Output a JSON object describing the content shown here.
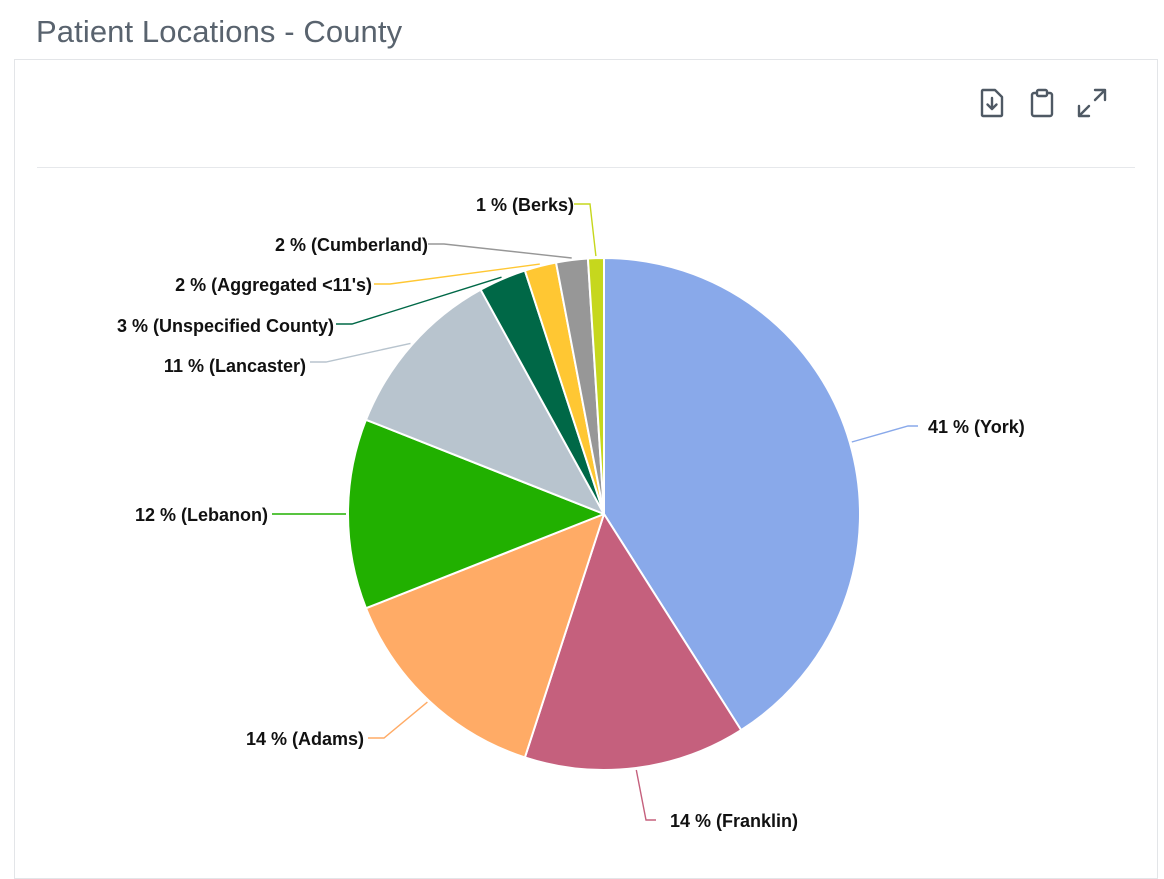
{
  "page": {
    "title": "Patient Locations - County"
  },
  "toolbar": {
    "icons": [
      "download-icon",
      "clipboard-icon",
      "expand-icon"
    ]
  },
  "chart_data": {
    "type": "pie",
    "title": "Patient Locations - County",
    "slices": [
      {
        "name": "York",
        "value": 41,
        "label": "41 % (York)",
        "color": "#89a9ea"
      },
      {
        "name": "Franklin",
        "value": 14,
        "label": "14 % (Franklin)",
        "color": "#c5607d"
      },
      {
        "name": "Adams",
        "value": 14,
        "label": "14 % (Adams)",
        "color": "#ffab66"
      },
      {
        "name": "Lebanon",
        "value": 12,
        "label": "12 % (Lebanon)",
        "color": "#21b000"
      },
      {
        "name": "Lancaster",
        "value": 11,
        "label": "11 % (Lancaster)",
        "color": "#b8c4ce"
      },
      {
        "name": "Unspecified County",
        "value": 3,
        "label": "3 % (Unspecified County)",
        "color": "#006847"
      },
      {
        "name": "Aggregated <11's",
        "value": 2,
        "label": "2 % (Aggregated <11's)",
        "color": "#ffc733"
      },
      {
        "name": "Cumberland",
        "value": 2,
        "label": "2 % (Cumberland)",
        "color": "#979797"
      },
      {
        "name": "Berks",
        "value": 1,
        "label": "1 % (Berks)",
        "color": "#c6d71d"
      }
    ]
  }
}
